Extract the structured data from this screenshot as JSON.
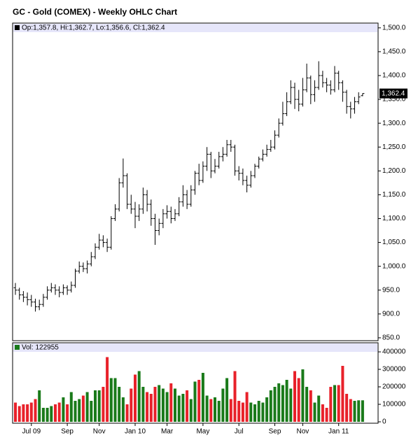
{
  "chart_data": {
    "type": "ohlc",
    "title": "GC - Gold (COMEX) - Weekly OHLC Chart",
    "ohlc_label": "Op:1,357.8, Hi:1,362.7, Lo:1,356.6, Cl:1,362.4",
    "last_label": "1,362.4",
    "volume_label": "Vol: 122955",
    "up_color": "#1a7a1a",
    "down_color": "#e8212a",
    "bar_color": "#000000",
    "categories": [
      null,
      null,
      null,
      null,
      "Jul 09",
      null,
      null,
      null,
      null,
      null,
      null,
      null,
      null,
      "Sep",
      null,
      null,
      null,
      null,
      null,
      null,
      null,
      "Nov",
      null,
      null,
      null,
      null,
      null,
      null,
      null,
      null,
      "Jan 10",
      null,
      null,
      null,
      null,
      null,
      null,
      null,
      "Mar",
      null,
      null,
      null,
      null,
      null,
      null,
      null,
      null,
      "May",
      null,
      null,
      null,
      null,
      null,
      null,
      null,
      null,
      "Jul",
      null,
      null,
      null,
      null,
      null,
      null,
      null,
      null,
      "Sep",
      null,
      null,
      null,
      null,
      null,
      null,
      "Nov",
      null,
      null,
      null,
      null,
      null,
      null,
      null,
      null,
      "Jan 11",
      null,
      null,
      null,
      null,
      null,
      null
    ],
    "open": [
      955,
      950,
      940,
      935,
      930,
      925,
      915,
      920,
      935,
      950,
      955,
      950,
      945,
      955,
      950,
      960,
      990,
      1000,
      995,
      1005,
      1020,
      1040,
      1055,
      1050,
      1040,
      1100,
      1120,
      1175,
      1190,
      1130,
      1120,
      1105,
      1120,
      1150,
      1130,
      1100,
      1075,
      1090,
      1110,
      1115,
      1100,
      1110,
      1135,
      1150,
      1130,
      1160,
      1195,
      1180,
      1210,
      1235,
      1200,
      1210,
      1230,
      1235,
      1255,
      1250,
      1200,
      1195,
      1180,
      1170,
      1190,
      1210,
      1225,
      1235,
      1245,
      1250,
      1275,
      1300,
      1320,
      1345,
      1375,
      1350,
      1340,
      1370,
      1395,
      1360,
      1375,
      1400,
      1385,
      1380,
      1370,
      1405,
      1385,
      1365,
      1335,
      1330,
      1345,
      1357.8
    ],
    "high": [
      965,
      955,
      948,
      945,
      940,
      932,
      930,
      942,
      958,
      965,
      962,
      958,
      962,
      960,
      968,
      995,
      1010,
      1008,
      1012,
      1030,
      1048,
      1068,
      1065,
      1058,
      1105,
      1130,
      1185,
      1226,
      1195,
      1150,
      1135,
      1130,
      1165,
      1160,
      1140,
      1110,
      1100,
      1120,
      1128,
      1125,
      1120,
      1145,
      1170,
      1160,
      1170,
      1200,
      1215,
      1220,
      1250,
      1240,
      1225,
      1240,
      1250,
      1265,
      1265,
      1255,
      1210,
      1205,
      1190,
      1200,
      1215,
      1230,
      1245,
      1255,
      1265,
      1285,
      1310,
      1345,
      1365,
      1390,
      1385,
      1370,
      1395,
      1425,
      1400,
      1390,
      1430,
      1410,
      1395,
      1390,
      1420,
      1410,
      1390,
      1370,
      1345,
      1355,
      1365,
      1362.7
    ],
    "low": [
      940,
      930,
      925,
      918,
      915,
      905,
      908,
      915,
      930,
      945,
      940,
      935,
      940,
      940,
      945,
      955,
      985,
      988,
      985,
      1000,
      1015,
      1035,
      1040,
      1030,
      1035,
      1095,
      1115,
      1165,
      1120,
      1110,
      1080,
      1095,
      1110,
      1115,
      1085,
      1045,
      1065,
      1080,
      1100,
      1090,
      1095,
      1105,
      1125,
      1120,
      1125,
      1150,
      1170,
      1175,
      1200,
      1185,
      1195,
      1205,
      1220,
      1230,
      1240,
      1190,
      1180,
      1170,
      1155,
      1165,
      1185,
      1205,
      1220,
      1230,
      1240,
      1245,
      1270,
      1295,
      1315,
      1340,
      1330,
      1325,
      1335,
      1365,
      1340,
      1345,
      1370,
      1375,
      1365,
      1360,
      1365,
      1370,
      1345,
      1320,
      1310,
      1320,
      1340,
      1356.6
    ],
    "close": [
      950,
      940,
      935,
      930,
      925,
      915,
      920,
      935,
      950,
      955,
      950,
      945,
      955,
      950,
      960,
      990,
      1000,
      995,
      1005,
      1020,
      1040,
      1055,
      1050,
      1040,
      1100,
      1120,
      1175,
      1190,
      1130,
      1120,
      1105,
      1120,
      1150,
      1130,
      1100,
      1075,
      1090,
      1110,
      1115,
      1100,
      1110,
      1135,
      1150,
      1130,
      1160,
      1195,
      1180,
      1210,
      1235,
      1200,
      1210,
      1230,
      1235,
      1255,
      1250,
      1200,
      1195,
      1180,
      1170,
      1190,
      1210,
      1225,
      1235,
      1245,
      1250,
      1275,
      1300,
      1320,
      1345,
      1375,
      1350,
      1340,
      1370,
      1395,
      1360,
      1375,
      1400,
      1385,
      1380,
      1370,
      1405,
      1385,
      1365,
      1335,
      1330,
      1345,
      1355,
      1362.4
    ],
    "volume": [
      110000,
      90000,
      100000,
      100000,
      110000,
      130000,
      180000,
      80000,
      80000,
      90000,
      100000,
      110000,
      140000,
      100000,
      170000,
      120000,
      130000,
      150000,
      170000,
      120000,
      180000,
      180000,
      200000,
      370000,
      250000,
      250000,
      200000,
      140000,
      100000,
      190000,
      270000,
      290000,
      200000,
      170000,
      160000,
      200000,
      210000,
      190000,
      170000,
      220000,
      190000,
      150000,
      160000,
      180000,
      130000,
      230000,
      240000,
      280000,
      150000,
      130000,
      140000,
      120000,
      190000,
      250000,
      130000,
      290000,
      120000,
      110000,
      170000,
      110000,
      100000,
      120000,
      110000,
      140000,
      180000,
      200000,
      220000,
      210000,
      240000,
      190000,
      290000,
      250000,
      300000,
      200000,
      180000,
      110000,
      150000,
      100000,
      80000,
      200000,
      210000,
      210000,
      320000,
      160000,
      130000,
      120000,
      122955,
      122955
    ],
    "ylim": [
      844,
      1510
    ],
    "yticks": [
      {
        "value": 850,
        "label": "850.0"
      },
      {
        "value": 900,
        "label": "900.0"
      },
      {
        "value": 950,
        "label": "950.0"
      },
      {
        "value": 1000,
        "label": "1,000.0"
      },
      {
        "value": 1050,
        "label": "1,050.0"
      },
      {
        "value": 1100,
        "label": "1,100.0"
      },
      {
        "value": 1150,
        "label": "1,150.0"
      },
      {
        "value": 1200,
        "label": "1,200.0"
      },
      {
        "value": 1250,
        "label": "1,250.0"
      },
      {
        "value": 1300,
        "label": "1,300.0"
      },
      {
        "value": 1350,
        "label": "1,350.0"
      },
      {
        "value": 1400,
        "label": "1,400.0"
      },
      {
        "value": 1450,
        "label": "1,450.0"
      },
      {
        "value": 1500,
        "label": "1,500.0"
      }
    ],
    "y2lim": [
      0,
      410000
    ],
    "y2ticks": [
      0,
      100000,
      200000,
      300000,
      400000
    ]
  }
}
